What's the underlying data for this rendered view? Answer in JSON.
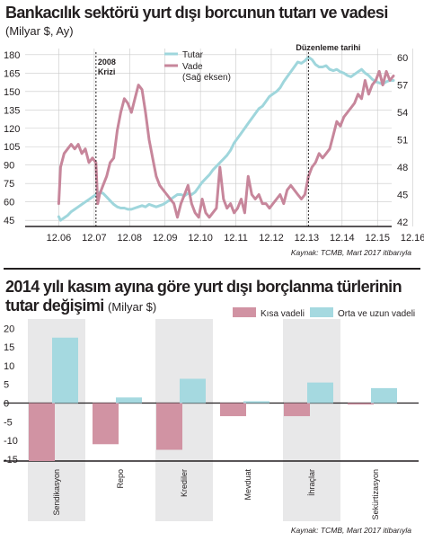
{
  "chart1": {
    "title": "Bankacılık sektörü yurt dışı borcunun tutarı ve vadesi",
    "subtitle": "(Milyar $, Ay)",
    "source": "Kaynak: TCMB, Mart 2017 itibarıyla",
    "annotations": [
      "2008",
      "Krizi",
      "Düzenleme tarihi"
    ]
  },
  "chart2": {
    "title_line1": "2014 yılı kasım ayına göre yurt dışı borçlanma türlerinin",
    "title_line2": "tutar değişimi",
    "unit": "(Milyar $)",
    "source": "Kaynak: TCMB, Mart 2017 itibarıyla"
  },
  "colors": {
    "tutar": "#9fd6dc",
    "vade": "#c7869b",
    "kisa": "#d193a3",
    "orta": "#a5d9e0",
    "band": "#e8e8e9",
    "text": "#231f20"
  },
  "chart_data": [
    {
      "type": "line",
      "title": "Bankacılık sektörü yurt dışı borcunun tutarı ve vadesi",
      "subtitle": "(Milyar $, Ay)",
      "x_ticks": [
        "12.06",
        "12.07",
        "12.08",
        "12.09",
        "12.10",
        "12.11",
        "12.12",
        "12.13",
        "12.14",
        "12.15",
        "12.16"
      ],
      "y_left_ticks": [
        45,
        60,
        75,
        90,
        105,
        120,
        135,
        150,
        165,
        180
      ],
      "y_right_ticks": [
        42,
        45,
        48,
        51,
        54,
        57,
        60
      ],
      "ylim_left": [
        40,
        185
      ],
      "ylim_right": [
        41.5,
        61
      ],
      "grid": true,
      "legend": "top-left",
      "series": [
        {
          "name": "Tutar",
          "axis": "left",
          "x": [
            2006.95,
            2007.0,
            2007.1,
            2007.2,
            2007.3,
            2007.4,
            2007.5,
            2007.6,
            2007.7,
            2007.8,
            2007.9,
            2008.0,
            2008.1,
            2008.2,
            2008.3,
            2008.4,
            2008.5,
            2008.6,
            2008.7,
            2008.8,
            2008.9,
            2009.0,
            2009.1,
            2009.2,
            2009.3,
            2009.4,
            2009.5,
            2009.6,
            2009.7,
            2009.8,
            2009.9,
            2010.0,
            2010.1,
            2010.2,
            2010.3,
            2010.4,
            2010.5,
            2010.6,
            2010.7,
            2010.8,
            2010.9,
            2011.0,
            2011.1,
            2011.2,
            2011.3,
            2011.4,
            2011.5,
            2011.6,
            2011.7,
            2011.8,
            2011.9,
            2012.0,
            2012.1,
            2012.2,
            2012.3,
            2012.4,
            2012.5,
            2012.6,
            2012.7,
            2012.8,
            2012.9,
            2013.0,
            2013.1,
            2013.2,
            2013.3,
            2013.4,
            2013.5,
            2013.6,
            2013.7,
            2013.8,
            2013.9,
            2014.0,
            2014.1,
            2014.2,
            2014.3,
            2014.4,
            2014.5,
            2014.6,
            2014.7,
            2014.8,
            2014.9,
            2015.0,
            2015.1,
            2015.2,
            2015.3,
            2015.4,
            2015.5,
            2015.6,
            2015.7,
            2015.8,
            2015.9,
            2016.0,
            2016.1,
            2016.2,
            2016.3,
            2016.4
          ],
          "y": [
            48,
            45,
            47,
            49,
            52,
            54,
            56,
            58,
            60,
            62,
            64,
            66,
            68,
            67,
            64,
            61,
            58,
            56,
            55,
            55,
            54,
            54,
            55,
            56,
            57,
            56,
            58,
            57,
            56,
            57,
            58,
            60,
            62,
            64,
            66,
            66,
            65,
            67,
            66,
            68,
            72,
            76,
            79,
            82,
            86,
            89,
            92,
            95,
            98,
            102,
            108,
            112,
            116,
            120,
            124,
            128,
            132,
            136,
            138,
            142,
            146,
            148,
            150,
            153,
            158,
            162,
            166,
            170,
            174,
            173,
            175,
            178,
            176,
            172,
            170,
            170,
            171,
            168,
            167,
            168,
            166,
            165,
            163,
            162,
            164,
            166,
            168,
            165,
            163,
            160,
            158,
            157,
            156,
            158,
            159,
            159
          ],
          "color": "#9fd6dc"
        },
        {
          "name": "Vade (Sağ eksen)",
          "axis": "right",
          "x": [
            2006.95,
            2007.0,
            2007.1,
            2007.2,
            2007.3,
            2007.4,
            2007.5,
            2007.6,
            2007.7,
            2007.8,
            2007.9,
            2008.0,
            2008.05,
            2008.1,
            2008.2,
            2008.3,
            2008.4,
            2008.5,
            2008.6,
            2008.7,
            2008.8,
            2008.9,
            2009.0,
            2009.1,
            2009.2,
            2009.3,
            2009.4,
            2009.5,
            2009.6,
            2009.7,
            2009.8,
            2009.9,
            2010.0,
            2010.1,
            2010.2,
            2010.3,
            2010.4,
            2010.5,
            2010.6,
            2010.7,
            2010.8,
            2010.9,
            2011.0,
            2011.1,
            2011.2,
            2011.3,
            2011.4,
            2011.5,
            2011.6,
            2011.7,
            2011.8,
            2011.9,
            2012.0,
            2012.1,
            2012.2,
            2012.3,
            2012.4,
            2012.5,
            2012.6,
            2012.7,
            2012.8,
            2012.9,
            2013.0,
            2013.1,
            2013.2,
            2013.3,
            2013.4,
            2013.5,
            2013.6,
            2013.7,
            2013.8,
            2013.9,
            2014.0,
            2014.1,
            2014.2,
            2014.3,
            2014.4,
            2014.5,
            2014.6,
            2014.7,
            2014.8,
            2014.9,
            2015.0,
            2015.1,
            2015.2,
            2015.3,
            2015.4,
            2015.5,
            2015.6,
            2015.7,
            2015.8,
            2015.9,
            2016.0,
            2016.1,
            2016.2,
            2016.3,
            2016.4
          ],
          "y": [
            44,
            48,
            49.5,
            50,
            50.5,
            50,
            50.5,
            49.5,
            50,
            48.5,
            49,
            48.5,
            44,
            45,
            46,
            47,
            48.5,
            49,
            52,
            54,
            55.5,
            55,
            54,
            55.5,
            57,
            56.5,
            54,
            51,
            49,
            47,
            46,
            45.5,
            45,
            44.5,
            44,
            42.5,
            44,
            45,
            46,
            44,
            43,
            42.5,
            44.5,
            43,
            42.5,
            43,
            43.5,
            48,
            44.5,
            43.5,
            44,
            43,
            43.5,
            44.5,
            43,
            47,
            45,
            44.5,
            45,
            44,
            44,
            43.5,
            44,
            44.5,
            45,
            44,
            45.5,
            46,
            45.5,
            45,
            44.5,
            45,
            47,
            48,
            48.5,
            49.5,
            49,
            49.5,
            50,
            51.5,
            53,
            52.5,
            53.5,
            54,
            54.5,
            55,
            56,
            55.5,
            57.5,
            56,
            57,
            57.5,
            58.5,
            57,
            58.5,
            57.5,
            58
          ],
          "color": "#c7869b"
        }
      ]
    },
    {
      "type": "bar",
      "title": "2014 yılı kasım ayına göre yurt dışı borçlanma türlerinin tutar değişimi",
      "subtitle": "(Milyar $)",
      "categories": [
        "Sendikasyon",
        "Repo",
        "Krediler",
        "Mevduat",
        "İhraçlar",
        "Sekürtizasyon"
      ],
      "series": [
        {
          "name": "Kısa vadeli",
          "values": [
            -15.5,
            -11,
            -12.5,
            -3.5,
            -3.5,
            -0.4
          ],
          "color": "#d193a3"
        },
        {
          "name": "Orta ve uzun vadeli",
          "values": [
            17.5,
            1.5,
            6.5,
            0.5,
            5.5,
            4
          ],
          "color": "#a5d9e0"
        }
      ],
      "y_ticks": [
        20,
        15,
        10,
        5,
        0,
        -5,
        -10,
        -15
      ],
      "ylim": [
        -15.5,
        22
      ],
      "grid": false,
      "legend": "top-right"
    }
  ]
}
